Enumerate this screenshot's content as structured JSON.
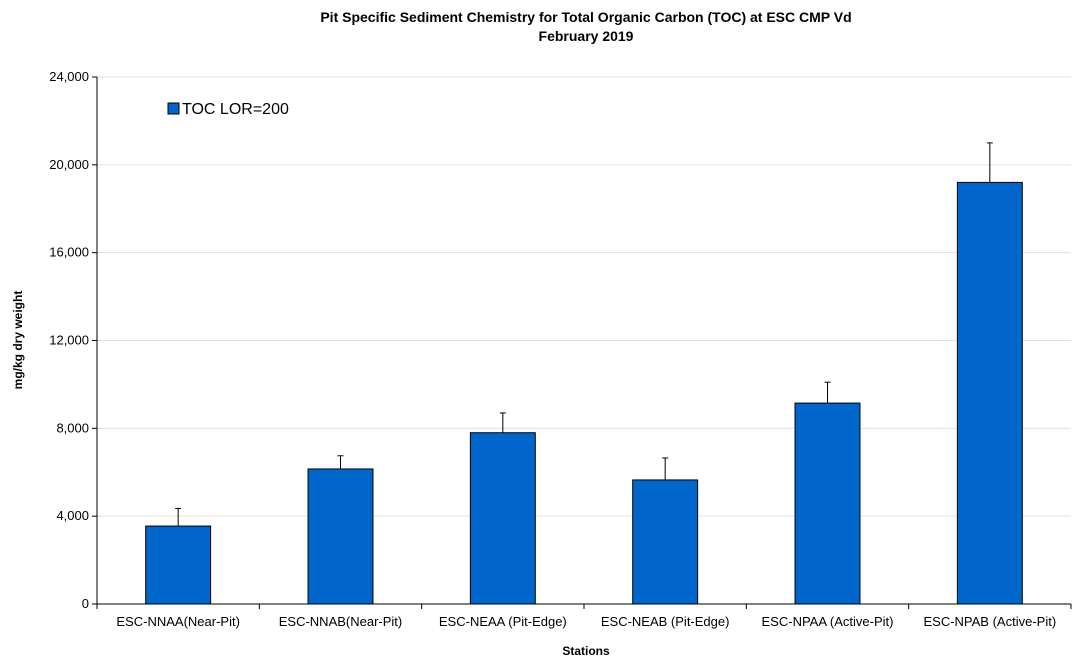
{
  "chart_data": {
    "type": "bar",
    "title": "Pit Specific Sediment Chemistry for Total Organic Carbon (TOC) at  ESC CMP Vd",
    "subtitle": "February 2019",
    "xlabel": "Stations",
    "ylabel": "mg/kg dry weight",
    "ylim": [
      0,
      24000
    ],
    "yticks": [
      0,
      4000,
      8000,
      12000,
      16000,
      20000,
      24000
    ],
    "ytick_labels": [
      "0",
      "4,000",
      "8,000",
      "12,000",
      "16,000",
      "20,000",
      "24,000"
    ],
    "grid": true,
    "legend_position": "top-left",
    "categories": [
      "ESC-NNAA(Near-Pit)",
      "ESC-NNAB(Near-Pit)",
      "ESC-NEAA (Pit-Edge)",
      "ESC-NEAB (Pit-Edge)",
      "ESC-NPAA (Active-Pit)",
      "ESC-NPAB (Active-Pit)"
    ],
    "series": [
      {
        "name": "TOC LOR=200",
        "color": "#0066CC",
        "values": [
          3550,
          6150,
          7800,
          5650,
          9150,
          19200
        ],
        "error_upper": [
          4350,
          6750,
          8700,
          6650,
          10100,
          21000
        ]
      }
    ]
  }
}
